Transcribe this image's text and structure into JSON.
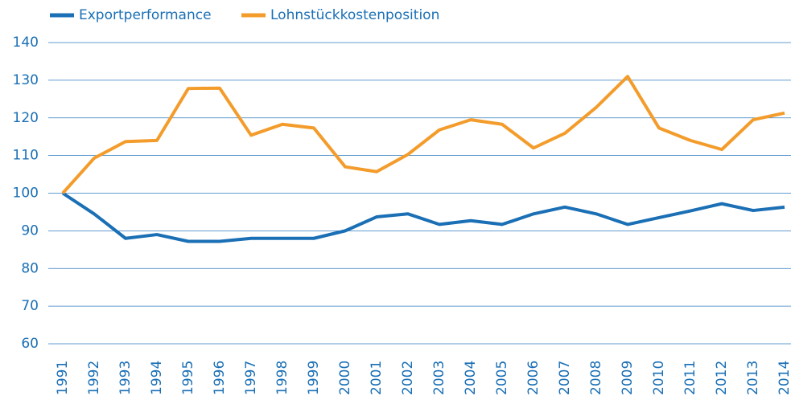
{
  "chart_data": {
    "type": "line",
    "x": [
      "1991",
      "1992",
      "1993",
      "1994",
      "1995",
      "1996",
      "1997",
      "1998",
      "1999",
      "2000",
      "2001",
      "2002",
      "2003",
      "2004",
      "2005",
      "2006",
      "2007",
      "2008",
      "2009",
      "2010",
      "2011",
      "2012",
      "2013",
      "2014"
    ],
    "series": [
      {
        "name": "Exportperformance",
        "color": "#1a6fb5",
        "values": [
          100,
          94.5,
          88,
          89,
          87.2,
          87.2,
          88,
          88,
          88,
          90,
          93.7,
          94.5,
          91.7,
          92.7,
          91.7,
          94.5,
          96.3,
          94.5,
          91.7,
          93.5,
          95.3,
          97.2,
          95.4,
          96.3
        ]
      },
      {
        "name": "Lohnstückkostenposition",
        "color": "#f39c2b",
        "values": [
          100,
          109.3,
          113.7,
          114,
          127.8,
          127.9,
          115.4,
          118.3,
          117.3,
          107,
          105.7,
          110.3,
          116.8,
          119.5,
          118.3,
          112,
          115.9,
          122.8,
          131,
          117.3,
          114,
          111.6,
          119.5,
          121.3
        ]
      }
    ],
    "ylim": [
      60,
      140
    ],
    "yticks": [
      60,
      70,
      80,
      90,
      100,
      110,
      120,
      130,
      140
    ],
    "grid": true
  }
}
